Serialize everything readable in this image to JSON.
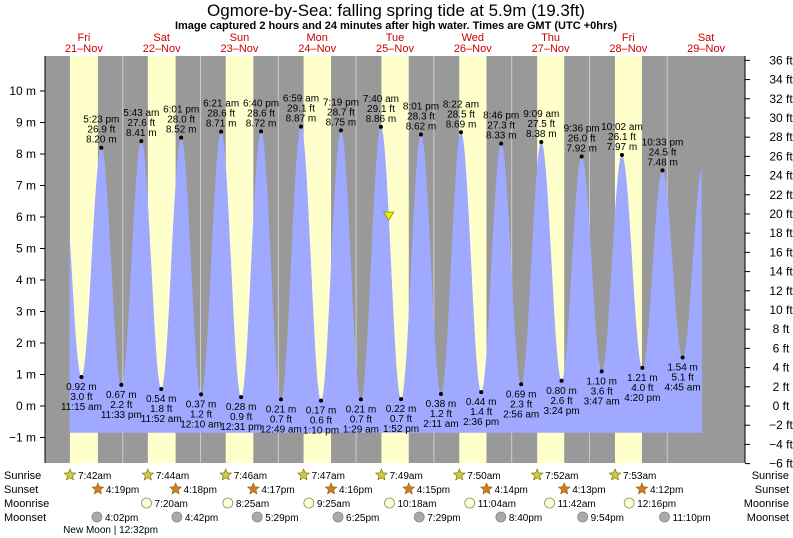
{
  "title": "Ogmore-by-Sea: falling  spring tide at 5.9m (19.3ft)",
  "subtitle": "Image captured 2 hours and 24 minutes after high water. Times are GMT (UTC +0hrs)",
  "colors": {
    "night": "#999999",
    "day": "#ffffcc",
    "water": "#9fa9ff",
    "current_marker": "#eeee00",
    "day_label": "#cc0000",
    "sun_icon": "#cccc44",
    "sunset_icon": "#dd7722",
    "moonrise_icon": "#ffffcc",
    "moonset_icon": "#aaaaaa"
  },
  "chart_data": {
    "type": "area",
    "title": "Ogmore-by-Sea: falling  spring tide at 5.9m (19.3ft)",
    "left_axis": {
      "unit": "m",
      "range": [
        -1.3,
        11.2
      ],
      "ticks": [
        -1,
        0,
        1,
        2,
        3,
        4,
        5,
        6,
        7,
        8,
        9,
        10
      ],
      "tick_labels": [
        "−1 m",
        "0 m",
        "1 m",
        "2 m",
        "3 m",
        "4 m",
        "5 m",
        "6 m",
        "7 m",
        "8 m",
        "9 m",
        "10 m"
      ]
    },
    "right_axis": {
      "unit": "ft",
      "range": [
        -6,
        36
      ],
      "tick_labels": [
        "−6 ft",
        "−4 ft",
        "−2 ft",
        "0 ft",
        "2 ft",
        "4 ft",
        "6 ft",
        "8 ft",
        "10 ft",
        "12 ft",
        "14 ft",
        "16 ft",
        "18 ft",
        "20 ft",
        "22 ft",
        "24 ft",
        "26 ft",
        "28 ft",
        "30 ft",
        "32 ft",
        "34 ft",
        "36 ft"
      ]
    },
    "x_range_hours": [
      0,
      216
    ],
    "days": [
      {
        "name": "Fri",
        "date": "21–Nov"
      },
      {
        "name": "Sat",
        "date": "22–Nov"
      },
      {
        "name": "Sun",
        "date": "23–Nov"
      },
      {
        "name": "Mon",
        "date": "24–Nov"
      },
      {
        "name": "Tue",
        "date": "25–Nov"
      },
      {
        "name": "Wed",
        "date": "26–Nov"
      },
      {
        "name": "Thu",
        "date": "27–Nov"
      },
      {
        "name": "Fri",
        "date": "28–Nov"
      },
      {
        "name": "Sat",
        "date": "29–Nov"
      }
    ],
    "tides": [
      {
        "type": "low",
        "t": 11.25,
        "time": "11:15 am",
        "m": 0.92,
        "m_label": "0.92 m",
        "ft_label": "3.0 ft"
      },
      {
        "type": "high",
        "t": 17.383,
        "time": "5:23 pm",
        "m": 8.2,
        "m_label": "8.20 m",
        "ft_label": "26.9 ft"
      },
      {
        "type": "low",
        "t": 23.55,
        "time": "11:33 pm",
        "m": 0.67,
        "m_label": "0.67 m",
        "ft_label": "2.2 ft"
      },
      {
        "type": "high",
        "t": 29.717,
        "time": "5:43 am",
        "m": 8.41,
        "m_label": "8.41 m",
        "ft_label": "27.6 ft"
      },
      {
        "type": "low",
        "t": 35.867,
        "time": "11:52 am",
        "m": 0.54,
        "m_label": "0.54 m",
        "ft_label": "1.8 ft"
      },
      {
        "type": "high",
        "t": 42.017,
        "time": "6:01 pm",
        "m": 8.52,
        "m_label": "8.52 m",
        "ft_label": "28.0 ft"
      },
      {
        "type": "low",
        "t": 48.167,
        "time": "12:10 am",
        "m": 0.37,
        "m_label": "0.37 m",
        "ft_label": "1.2 ft"
      },
      {
        "type": "high",
        "t": 54.35,
        "time": "6:21 am",
        "m": 8.71,
        "m_label": "8.71 m",
        "ft_label": "28.6 ft"
      },
      {
        "type": "low",
        "t": 60.517,
        "time": "12:31 pm",
        "m": 0.28,
        "m_label": "0.28 m",
        "ft_label": "0.9 ft"
      },
      {
        "type": "high",
        "t": 66.667,
        "time": "6:40 pm",
        "m": 8.72,
        "m_label": "8.72 m",
        "ft_label": "28.6 ft"
      },
      {
        "type": "low",
        "t": 72.817,
        "time": "12:49 am",
        "m": 0.21,
        "m_label": "0.21 m",
        "ft_label": "0.7 ft"
      },
      {
        "type": "high",
        "t": 78.983,
        "time": "6:59 am",
        "m": 8.87,
        "m_label": "8.87 m",
        "ft_label": "29.1 ft"
      },
      {
        "type": "low",
        "t": 85.167,
        "time": "1:10 pm",
        "m": 0.17,
        "m_label": "0.17 m",
        "ft_label": "0.6 ft"
      },
      {
        "type": "high",
        "t": 91.317,
        "time": "7:19 pm",
        "m": 8.75,
        "m_label": "8.75 m",
        "ft_label": "28.7 ft"
      },
      {
        "type": "low",
        "t": 97.483,
        "time": "1:29 am",
        "m": 0.21,
        "m_label": "0.21 m",
        "ft_label": "0.7 ft"
      },
      {
        "type": "high",
        "t": 103.667,
        "time": "7:40 am",
        "m": 8.86,
        "m_label": "8.86 m",
        "ft_label": "29.1 ft"
      },
      {
        "type": "low",
        "t": 109.867,
        "time": "1:52 pm",
        "m": 0.22,
        "m_label": "0.22 m",
        "ft_label": "0.7 ft"
      },
      {
        "type": "high",
        "t": 116.017,
        "time": "8:01 pm",
        "m": 8.62,
        "m_label": "8.62 m",
        "ft_label": "28.3 ft"
      },
      {
        "type": "low",
        "t": 122.183,
        "time": "2:11 am",
        "m": 0.38,
        "m_label": "0.38 m",
        "ft_label": "1.2 ft"
      },
      {
        "type": "high",
        "t": 128.367,
        "time": "8:22 am",
        "m": 8.69,
        "m_label": "8.69 m",
        "ft_label": "28.5 ft"
      },
      {
        "type": "low",
        "t": 134.6,
        "time": "2:36 pm",
        "m": 0.44,
        "m_label": "0.44 m",
        "ft_label": "1.4 ft"
      },
      {
        "type": "high",
        "t": 140.767,
        "time": "8:46 pm",
        "m": 8.33,
        "m_label": "8.33 m",
        "ft_label": "27.3 ft"
      },
      {
        "type": "low",
        "t": 146.933,
        "time": "2:56 am",
        "m": 0.69,
        "m_label": "0.69 m",
        "ft_label": "2.3 ft"
      },
      {
        "type": "high",
        "t": 153.15,
        "time": "9:09 am",
        "m": 8.38,
        "m_label": "8.38 m",
        "ft_label": "27.5 ft"
      },
      {
        "type": "low",
        "t": 159.4,
        "time": "3:24 pm",
        "m": 0.8,
        "m_label": "0.80 m",
        "ft_label": "2.6 ft"
      },
      {
        "type": "high",
        "t": 165.6,
        "time": "9:36 pm",
        "m": 7.92,
        "m_label": "7.92 m",
        "ft_label": "26.0 ft"
      },
      {
        "type": "low",
        "t": 171.783,
        "time": "3:47 am",
        "m": 1.1,
        "m_label": "1.10 m",
        "ft_label": "3.6 ft"
      },
      {
        "type": "high",
        "t": 178.033,
        "time": "10:02 am",
        "m": 7.97,
        "m_label": "7.97 m",
        "ft_label": "26.1 ft"
      },
      {
        "type": "low",
        "t": 184.333,
        "time": "4:20 pm",
        "m": 1.21,
        "m_label": "1.21 m",
        "ft_label": "4.0 ft"
      },
      {
        "type": "high",
        "t": 190.55,
        "time": "10:33 pm",
        "m": 7.48,
        "m_label": "7.48 m",
        "ft_label": "24.5 ft"
      },
      {
        "type": "low",
        "t": 196.75,
        "time": "4:45 am",
        "m": 1.54,
        "m_label": "1.54 m",
        "ft_label": "5.1 ft"
      }
    ],
    "current": {
      "t": 106.067,
      "m": 5.9
    }
  },
  "rows": {
    "sunrise_label": "Sunrise",
    "sunset_label": "Sunset",
    "moonrise_label": "Moonrise",
    "moonset_label": "Moonset"
  },
  "sunrise": [
    {
      "t": 7.7,
      "time": "7:42am"
    },
    {
      "t": 31.733,
      "time": "7:44am"
    },
    {
      "t": 55.767,
      "time": "7:46am"
    },
    {
      "t": 79.783,
      "time": "7:47am"
    },
    {
      "t": 103.817,
      "time": "7:49am"
    },
    {
      "t": 127.833,
      "time": "7:50am"
    },
    {
      "t": 151.867,
      "time": "7:52am"
    },
    {
      "t": 175.883,
      "time": "7:53am"
    }
  ],
  "sunset": [
    {
      "t": 16.317,
      "time": "4:19pm"
    },
    {
      "t": 40.3,
      "time": "4:18pm"
    },
    {
      "t": 64.283,
      "time": "4:17pm"
    },
    {
      "t": 88.267,
      "time": "4:16pm"
    },
    {
      "t": 112.25,
      "time": "4:15pm"
    },
    {
      "t": 136.233,
      "time": "4:14pm"
    },
    {
      "t": 160.217,
      "time": "4:13pm"
    },
    {
      "t": 184.2,
      "time": "4:12pm"
    }
  ],
  "moonrise": [
    {
      "t": 31.333,
      "time": "7:20am"
    },
    {
      "t": 56.417,
      "time": "8:25am"
    },
    {
      "t": 81.417,
      "time": "9:25am"
    },
    {
      "t": 106.3,
      "time": "10:18am"
    },
    {
      "t": 131.067,
      "time": "11:04am"
    },
    {
      "t": 155.7,
      "time": "11:42am"
    },
    {
      "t": 180.267,
      "time": "12:16pm"
    }
  ],
  "moonset": [
    {
      "t": 16.033,
      "time": "4:02pm"
    },
    {
      "t": 40.7,
      "time": "4:42pm"
    },
    {
      "t": 65.483,
      "time": "5:29pm"
    },
    {
      "t": 90.417,
      "time": "6:25pm"
    },
    {
      "t": 115.483,
      "time": "7:29pm"
    },
    {
      "t": 140.667,
      "time": "8:40pm"
    },
    {
      "t": 165.9,
      "time": "9:54pm"
    },
    {
      "t": 191.167,
      "time": "11:10pm"
    }
  ],
  "moon_phase": {
    "t": 12.533,
    "text": "New Moon | 12:32pm"
  }
}
